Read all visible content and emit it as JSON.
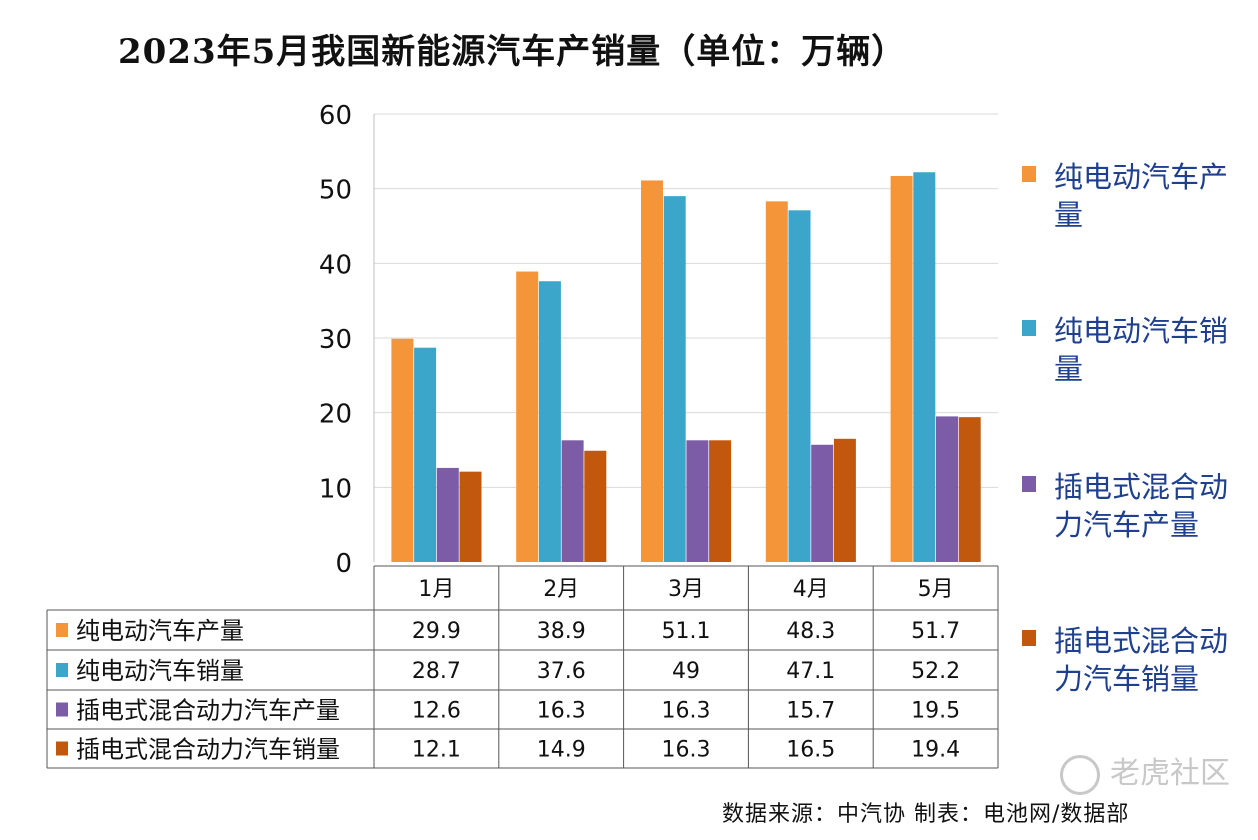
{
  "title": "2023年5月我国新能源汽车产销量（单位：万辆）",
  "source": "数据来源：中汽协  制表：电池网/数据部",
  "watermark": "老虎社区",
  "colors": {
    "bev_prod": "#f5953a",
    "bev_sales": "#3ba6c9",
    "phev_prod": "#7c5ca6",
    "phev_sales": "#c2580d"
  },
  "chart_data": {
    "type": "bar",
    "categories": [
      "1月",
      "2月",
      "3月",
      "4月",
      "5月"
    ],
    "ylim": [
      0,
      60
    ],
    "yticks": [
      "0",
      "10",
      "20",
      "30",
      "40",
      "50",
      "60"
    ],
    "series": [
      {
        "name": "纯电动汽车产量",
        "values": [
          29.9,
          38.9,
          51.1,
          48.3,
          51.7
        ],
        "labels": [
          "29.9",
          "38.9",
          "51.1",
          "48.3",
          "51.7"
        ]
      },
      {
        "name": "纯电动汽车销量",
        "values": [
          28.7,
          37.6,
          49,
          47.1,
          52.2
        ],
        "labels": [
          "28.7",
          "37.6",
          "49",
          "47.1",
          "52.2"
        ]
      },
      {
        "name": "插电式混合动力汽车产量",
        "values": [
          12.6,
          16.3,
          16.3,
          15.7,
          19.5
        ],
        "labels": [
          "12.6",
          "16.3",
          "16.3",
          "15.7",
          "19.5"
        ]
      },
      {
        "name": "插电式混合动力汽车销量",
        "values": [
          12.1,
          14.9,
          16.3,
          16.5,
          19.4
        ],
        "labels": [
          "12.1",
          "14.9",
          "16.3",
          "16.5",
          "19.4"
        ]
      }
    ],
    "legend": {
      "position": "right",
      "items": [
        "纯电动汽车产量",
        "纯电动汽车销量",
        "插电式混合动力汽车产量",
        "插电式混合动力汽车销量"
      ]
    },
    "grid": true
  }
}
